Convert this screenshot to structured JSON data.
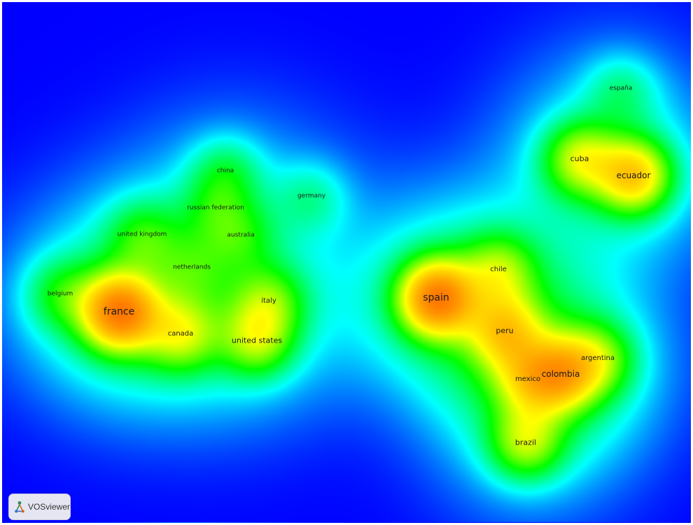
{
  "app": {
    "logo_text": "VOSviewer"
  },
  "colors": {
    "background": "#0000ff",
    "gradient": [
      "#0000ff",
      "#00ffff",
      "#00ff00",
      "#ffff00",
      "#ff8000",
      "#ff0000"
    ]
  },
  "items": [
    {
      "label": "france",
      "weight": 0.9
    },
    {
      "label": "spain",
      "weight": 0.9
    },
    {
      "label": "ecuador",
      "weight": 0.62
    },
    {
      "label": "cuba",
      "weight": 0.42
    },
    {
      "label": "españa",
      "weight": 0.14
    },
    {
      "label": "colombia",
      "weight": 0.55
    },
    {
      "label": "peru",
      "weight": 0.45
    },
    {
      "label": "brazil",
      "weight": 0.38
    },
    {
      "label": "chile",
      "weight": 0.3
    },
    {
      "label": "mexico",
      "weight": 0.3
    },
    {
      "label": "argentina",
      "weight": 0.3
    },
    {
      "label": "canada",
      "weight": 0.35
    },
    {
      "label": "belgium",
      "weight": 0.2
    },
    {
      "label": "united kingdom",
      "weight": 0.2
    },
    {
      "label": "netherlands",
      "weight": 0.12
    },
    {
      "label": "italy",
      "weight": 0.28
    },
    {
      "label": "united states",
      "weight": 0.36
    },
    {
      "label": "china",
      "weight": 0.18
    },
    {
      "label": "russian federation",
      "weight": 0.14
    },
    {
      "label": "australia",
      "weight": 0.16
    },
    {
      "label": "germany",
      "weight": 0.14
    }
  ]
}
